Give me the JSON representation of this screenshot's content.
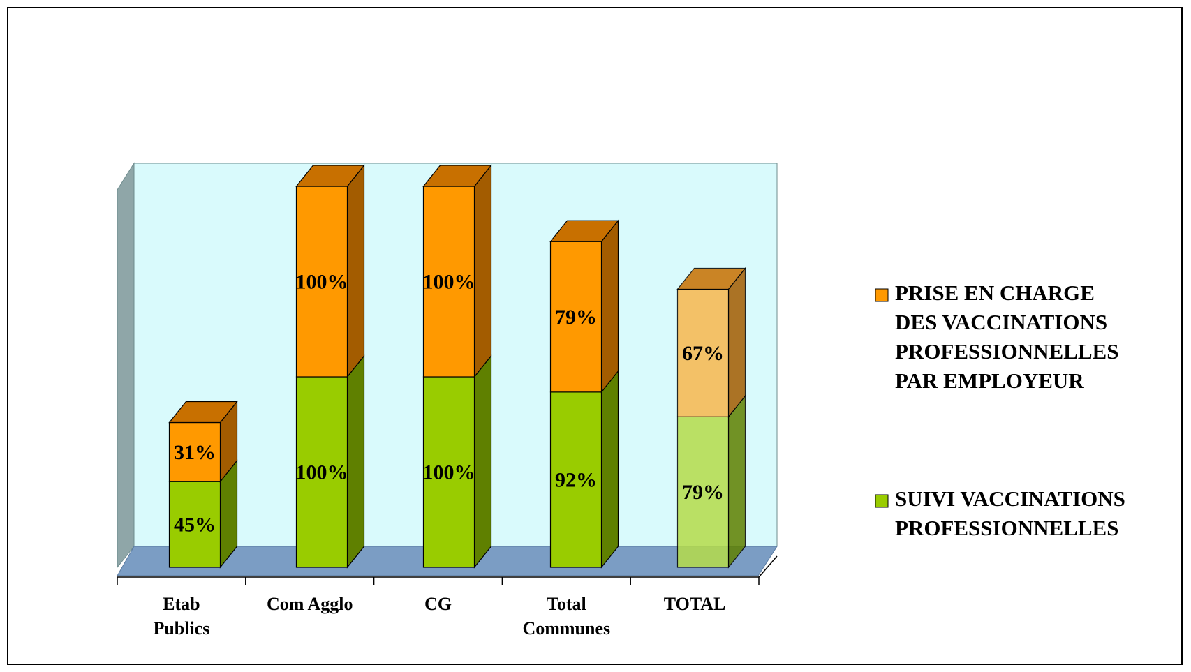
{
  "chart_data": {
    "type": "bar",
    "stacked": true,
    "three_d": true,
    "categories": [
      [
        "Etab",
        "Publics"
      ],
      [
        "Com Agglo"
      ],
      [
        "CG"
      ],
      [
        "Total",
        "Communes"
      ],
      [
        "TOTAL"
      ]
    ],
    "series": [
      {
        "name": "SUIVI VACCINATIONS PROFESSIONNELLES",
        "legend_lines": [
          "SUIVI VACCINATIONS",
          "PROFESSIONNELLES"
        ],
        "values": [
          45,
          100,
          100,
          92,
          79
        ],
        "labels": [
          "45%",
          "100%",
          "100%",
          "92%",
          "79%"
        ],
        "color": "#99CC00",
        "side_color": "#5F8000",
        "top_color": "#7FA800",
        "total_color": "#B5DC4A"
      },
      {
        "name": "PRISE EN CHARGE DES VACCINATIONS PROFESSIONNELLES PAR EMPLOYEUR",
        "legend_lines": [
          "PRISE EN CHARGE",
          "DES VACCINATIONS",
          "PROFESSIONNELLES",
          "PAR EMPLOYEUR"
        ],
        "values": [
          31,
          100,
          100,
          79,
          67
        ],
        "labels": [
          "31%",
          "100%",
          "100%",
          "79%",
          "67%"
        ],
        "color": "#FF9900",
        "side_color": "#A35C00",
        "top_color": "#C87000",
        "total_color": "#F8B84E"
      }
    ],
    "ylim": [
      0,
      200
    ],
    "grid": false,
    "legend": "right",
    "wall_color": "#D9FAFC",
    "side_wall_color": "#8FA6A8",
    "floor_color": "#7B9DC4"
  }
}
